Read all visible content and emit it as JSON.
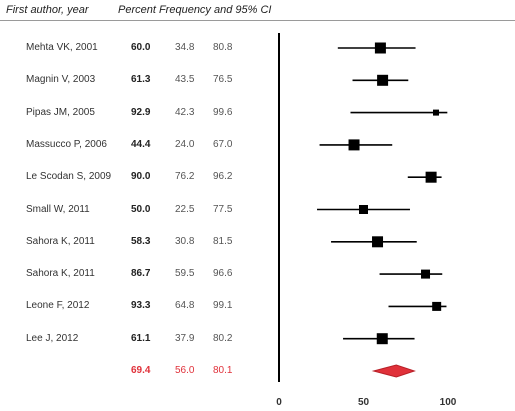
{
  "header": {
    "author_col": "First author, year",
    "stat_col": "Percent Frequency and 95% CI"
  },
  "studies": [
    {
      "author": "Mehta VK, 2001",
      "est": "60.0",
      "lo": "34.8",
      "hi": "80.8"
    },
    {
      "author": "Magnin V, 2003",
      "est": "61.3",
      "lo": "43.5",
      "hi": "76.5"
    },
    {
      "author": "Pipas JM, 2005",
      "est": "92.9",
      "lo": "42.3",
      "hi": "99.6"
    },
    {
      "author": "Massucco P, 2006",
      "est": "44.4",
      "lo": "24.0",
      "hi": "67.0"
    },
    {
      "author": "Le Scodan S, 2009",
      "est": "90.0",
      "lo": "76.2",
      "hi": "96.2"
    },
    {
      "author": "Small W, 2011",
      "est": "50.0",
      "lo": "22.5",
      "hi": "77.5"
    },
    {
      "author": "Sahora K, 2011",
      "est": "58.3",
      "lo": "30.8",
      "hi": "81.5"
    },
    {
      "author": "Sahora K, 2011",
      "est": "86.7",
      "lo": "59.5",
      "hi": "96.6"
    },
    {
      "author": "Leone F, 2012",
      "est": "93.3",
      "lo": "64.8",
      "hi": "99.1"
    },
    {
      "author": "Lee J, 2012",
      "est": "61.1",
      "lo": "37.9",
      "hi": "80.2"
    }
  ],
  "pooled": {
    "est": "69.4",
    "lo": "56.0",
    "hi": "80.1"
  },
  "colors": {
    "pooled": "#e0313a",
    "marker": "#000000",
    "axis": "#000000"
  },
  "chart_data": {
    "type": "forest",
    "x_ticks": [
      "0",
      "50",
      "100"
    ],
    "xlim": [
      0,
      110
    ],
    "series": [
      {
        "est": 60.0,
        "lo": 34.8,
        "hi": 80.8,
        "weight": 3
      },
      {
        "est": 61.3,
        "lo": 43.5,
        "hi": 76.5,
        "weight": 3
      },
      {
        "est": 92.9,
        "lo": 42.3,
        "hi": 99.6,
        "weight": 1
      },
      {
        "est": 44.4,
        "lo": 24.0,
        "hi": 67.0,
        "weight": 3
      },
      {
        "est": 90.0,
        "lo": 76.2,
        "hi": 96.2,
        "weight": 3
      },
      {
        "est": 50.0,
        "lo": 22.5,
        "hi": 77.5,
        "weight": 2
      },
      {
        "est": 58.3,
        "lo": 30.8,
        "hi": 81.5,
        "weight": 3
      },
      {
        "est": 86.7,
        "lo": 59.5,
        "hi": 96.6,
        "weight": 2
      },
      {
        "est": 93.3,
        "lo": 64.8,
        "hi": 99.1,
        "weight": 2
      },
      {
        "est": 61.1,
        "lo": 37.9,
        "hi": 80.2,
        "weight": 3
      }
    ],
    "pooled": {
      "est": 69.4,
      "lo": 56.0,
      "hi": 80.1
    }
  }
}
